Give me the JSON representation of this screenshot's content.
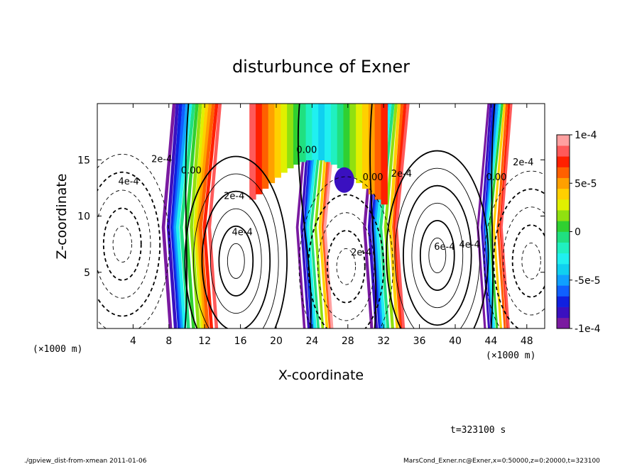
{
  "chart_data": {
    "type": "contour",
    "title": "disturbunce of Exner",
    "xlabel": "X-coordinate",
    "ylabel": "Z-coordinate",
    "x_unit": "(×1000 m)",
    "y_unit": "(×1000 m)",
    "xlim": [
      0,
      50
    ],
    "ylim": [
      0,
      20
    ],
    "x_ticks": [
      4,
      8,
      12,
      16,
      20,
      24,
      28,
      32,
      36,
      40,
      44,
      48
    ],
    "y_ticks": [
      5,
      10,
      15
    ],
    "colorbar": {
      "range": [
        -0.0001,
        0.0001
      ],
      "labels": [
        {
          "value": 0.0001,
          "text": "1e-4"
        },
        {
          "value": 5e-05,
          "text": "5e-5"
        },
        {
          "value": 0,
          "text": "0"
        },
        {
          "value": -5e-05,
          "text": "-5e-5"
        },
        {
          "value": -0.0001,
          "text": "-1e-4"
        }
      ],
      "colors": [
        "#7a1aa0",
        "#3a10c0",
        "#1020e0",
        "#1060ff",
        "#10a0ff",
        "#10d0f0",
        "#20f0f0",
        "#20f0c0",
        "#20e080",
        "#30d030",
        "#90e010",
        "#e0f000",
        "#ffd000",
        "#ffa000",
        "#ff6000",
        "#ff2000",
        "#ff5a5a",
        "#ffa0a0"
      ]
    },
    "contour_labels": [
      {
        "x": 10.5,
        "z": 13.8,
        "text": "0.00"
      },
      {
        "x": 23.4,
        "z": 15.6,
        "text": "0.00"
      },
      {
        "x": 30.8,
        "z": 13.2,
        "text": "0.00"
      },
      {
        "x": 44.6,
        "z": 13.2,
        "text": "0.00"
      },
      {
        "x": 7.2,
        "z": 14.8,
        "text": "2e-4"
      },
      {
        "x": 3.5,
        "z": 12.8,
        "text": "4e-4"
      },
      {
        "x": 15.3,
        "z": 11.5,
        "text": "2e-4"
      },
      {
        "x": 16.2,
        "z": 8.3,
        "text": "4e-4"
      },
      {
        "x": 29.5,
        "z": 6.5,
        "text": "2e-4"
      },
      {
        "x": 34.0,
        "z": 13.5,
        "text": "2e-4"
      },
      {
        "x": 38.8,
        "z": 7.0,
        "text": "6e-4"
      },
      {
        "x": 41.6,
        "z": 7.2,
        "text": "4e-4"
      },
      {
        "x": 47.6,
        "z": 14.5,
        "text": "2e-4"
      }
    ]
  },
  "time_label": "t=323100 s",
  "footer_left": "./gpview_dist-from-xmean  2011-01-06",
  "footer_right": "MarsCond_Exner.nc@Exner,x=0:50000,z=0:20000,t=323100"
}
